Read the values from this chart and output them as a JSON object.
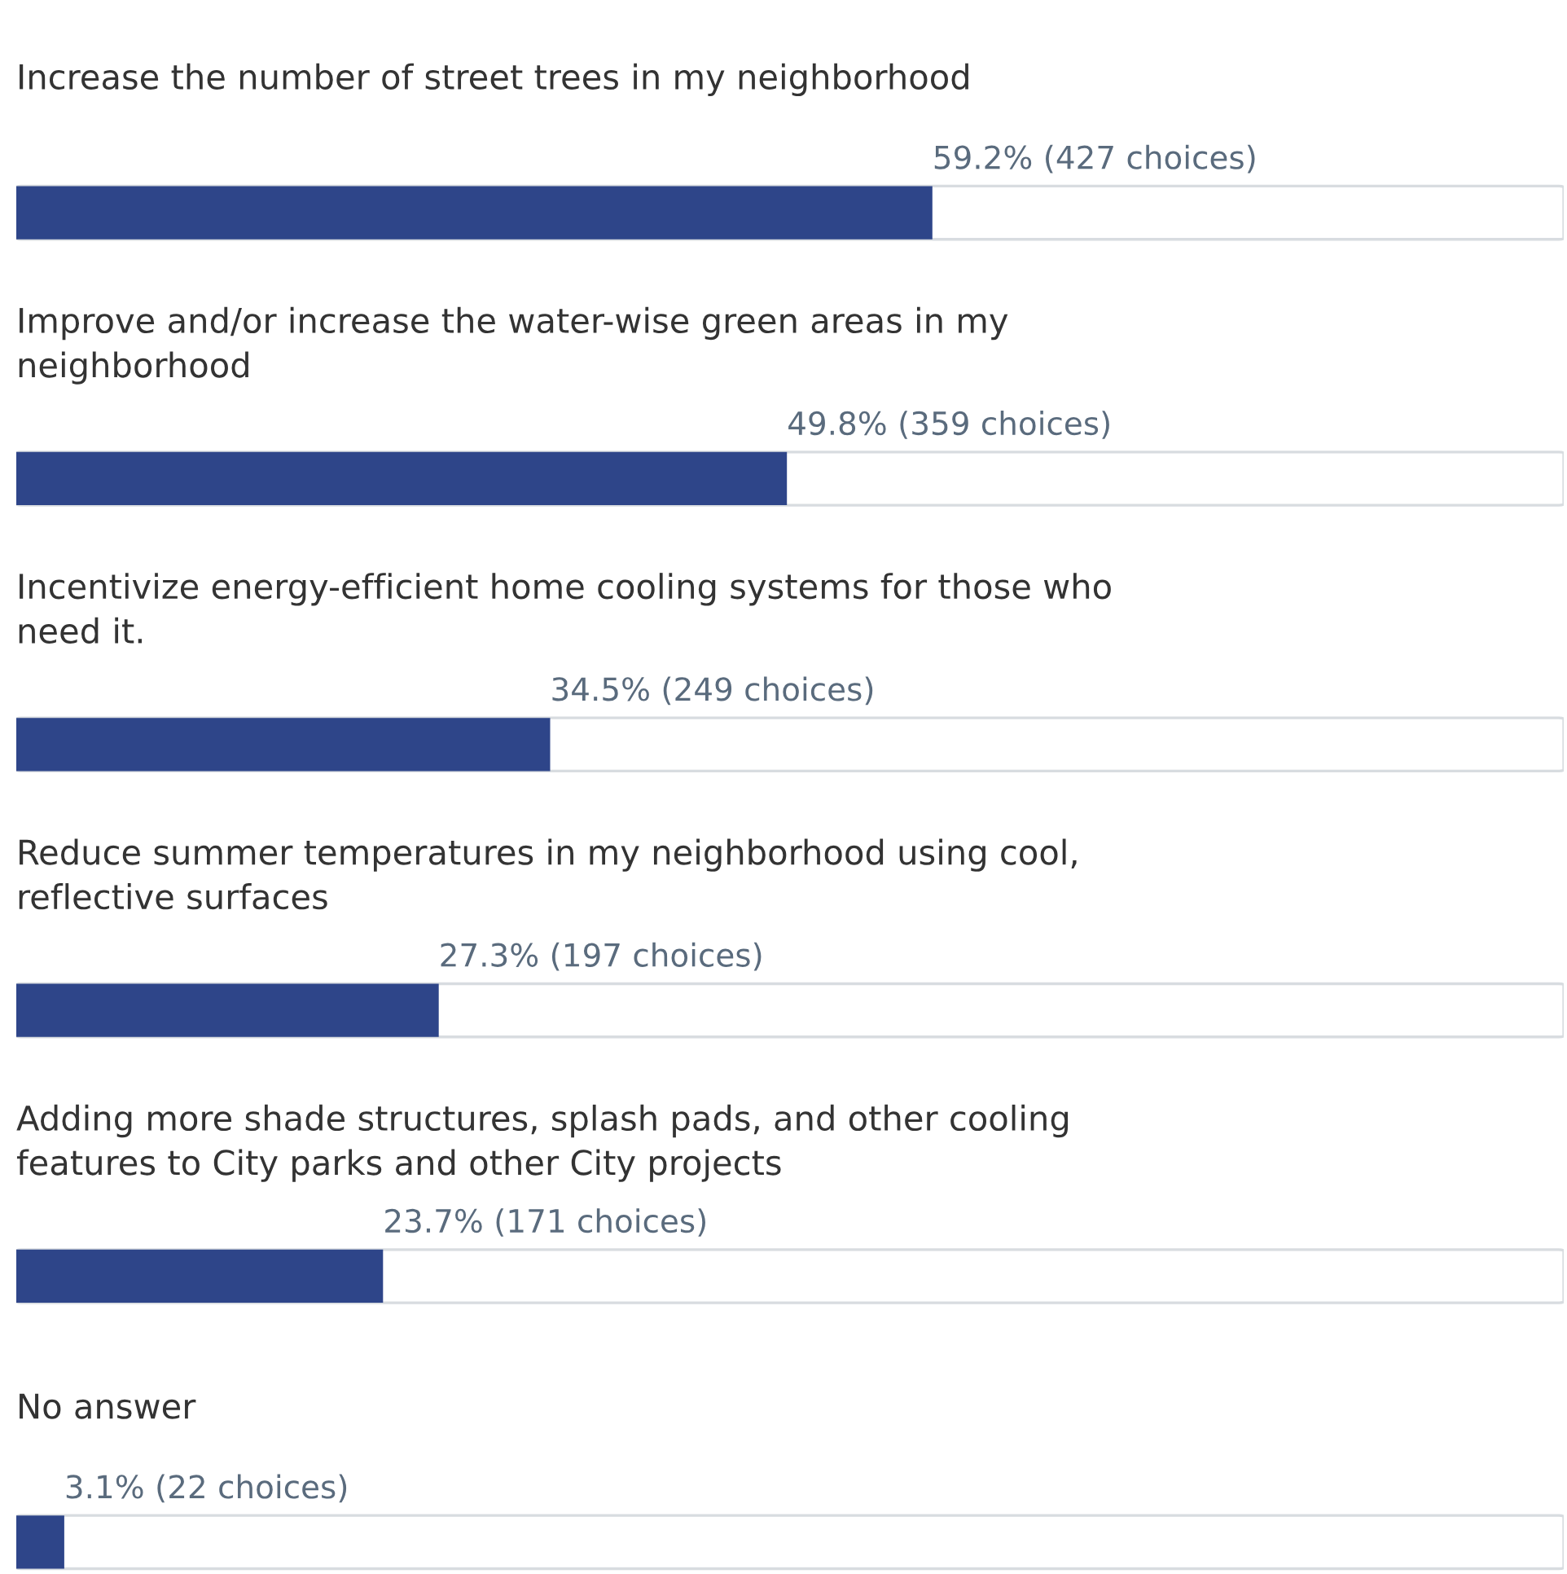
{
  "chart_data": {
    "type": "bar",
    "orientation": "horizontal",
    "categories": [
      "Increase the number of street trees in my neighborhood",
      "Improve and/or increase the water-wise green areas in my neighborhood",
      "Incentivize energy-efficient home cooling systems for those who need it.",
      "Reduce summer temperatures in my neighborhood using cool, reflective surfaces",
      "Adding more shade structures, splash pads, and other cooling features to City parks and other City projects",
      "No answer"
    ],
    "values": [
      59.2,
      49.8,
      34.5,
      27.3,
      23.7,
      3.1
    ],
    "value_labels": [
      "59.2% (427 choices)",
      "49.8% (359 choices)",
      "34.5% (249 choices)",
      "27.3% (197 choices)",
      "23.7% (171 choices)",
      "3.1% (22 choices)"
    ],
    "color": "#2e4589",
    "xlim": [
      0,
      100
    ]
  }
}
